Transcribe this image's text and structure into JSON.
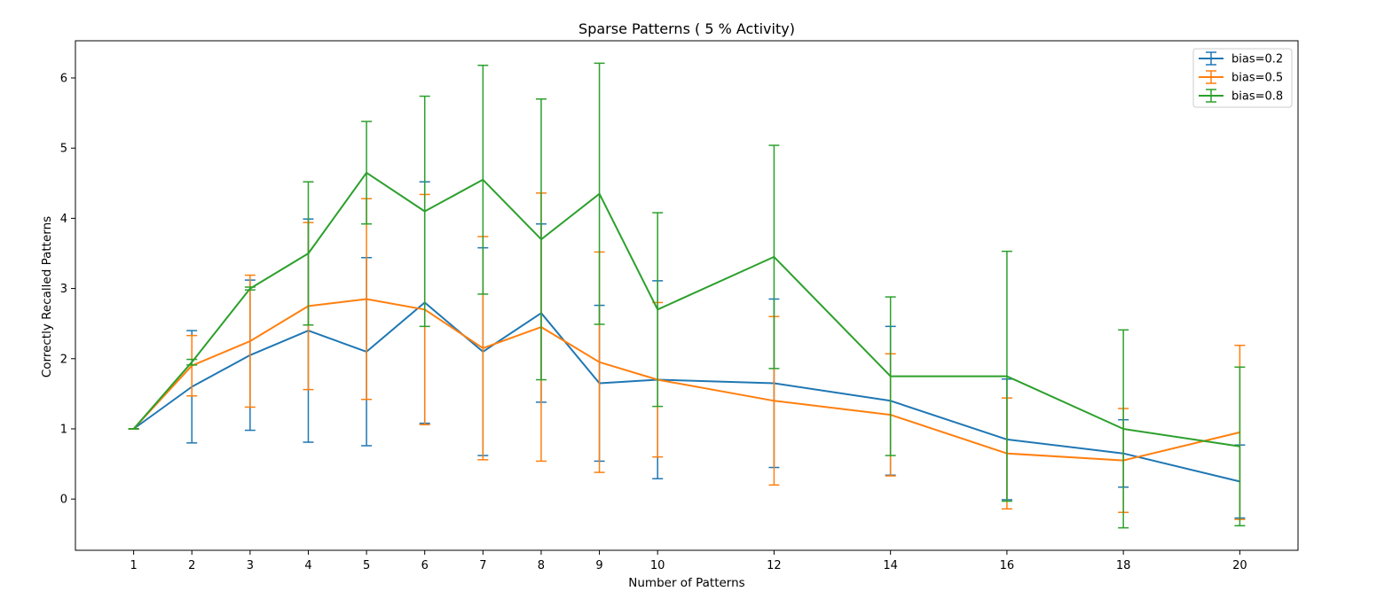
{
  "chart_data": {
    "type": "line",
    "title": "Sparse Patterns ( 5 % Activity)",
    "xlabel": "Number of Patterns",
    "ylabel": "Correctly Recalled Patterns",
    "xlim": [
      0.0,
      21.0
    ],
    "ylim": [
      -0.73,
      6.53
    ],
    "x_ticks": [
      1,
      2,
      3,
      4,
      5,
      6,
      7,
      8,
      9,
      10,
      12,
      14,
      16,
      18,
      20
    ],
    "y_ticks": [
      0,
      1,
      2,
      3,
      4,
      5,
      6
    ],
    "grid": false,
    "legend_position": "top-right",
    "error_bars": true,
    "series": [
      {
        "name": "bias=0.2",
        "color": "#1f77b4",
        "x": [
          1,
          2,
          3,
          4,
          5,
          6,
          7,
          8,
          9,
          10,
          12,
          14,
          16,
          18,
          20
        ],
        "y": [
          1.0,
          1.6,
          2.05,
          2.4,
          2.1,
          2.8,
          2.1,
          2.65,
          1.65,
          1.7,
          1.65,
          1.4,
          0.85,
          0.65,
          0.25
        ],
        "err": [
          0.0,
          0.8,
          1.07,
          1.59,
          1.34,
          1.72,
          1.48,
          1.27,
          1.11,
          1.41,
          1.2,
          1.06,
          0.86,
          0.48,
          0.52
        ]
      },
      {
        "name": "bias=0.5",
        "color": "#ff7f0e",
        "x": [
          1,
          2,
          3,
          4,
          5,
          6,
          7,
          8,
          9,
          10,
          12,
          14,
          16,
          18,
          20
        ],
        "y": [
          1.0,
          1.9,
          2.25,
          2.75,
          2.85,
          2.7,
          2.15,
          2.45,
          1.95,
          1.7,
          1.4,
          1.2,
          0.65,
          0.55,
          0.95
        ],
        "err": [
          0.0,
          0.43,
          0.94,
          1.19,
          1.43,
          1.64,
          1.59,
          1.91,
          1.57,
          1.1,
          1.2,
          0.87,
          0.79,
          0.74,
          1.24
        ]
      },
      {
        "name": "bias=0.8",
        "color": "#2ca02c",
        "x": [
          1,
          2,
          3,
          4,
          5,
          6,
          7,
          8,
          9,
          10,
          12,
          14,
          16,
          18,
          20
        ],
        "y": [
          1.0,
          1.95,
          3.0,
          3.5,
          4.65,
          4.1,
          4.55,
          3.7,
          4.35,
          2.7,
          3.45,
          1.75,
          1.75,
          1.0,
          0.75
        ],
        "err": [
          0.0,
          0.04,
          0.02,
          1.02,
          0.73,
          1.64,
          1.63,
          2.0,
          1.86,
          1.38,
          1.59,
          1.13,
          1.78,
          1.41,
          1.13
        ]
      }
    ]
  }
}
